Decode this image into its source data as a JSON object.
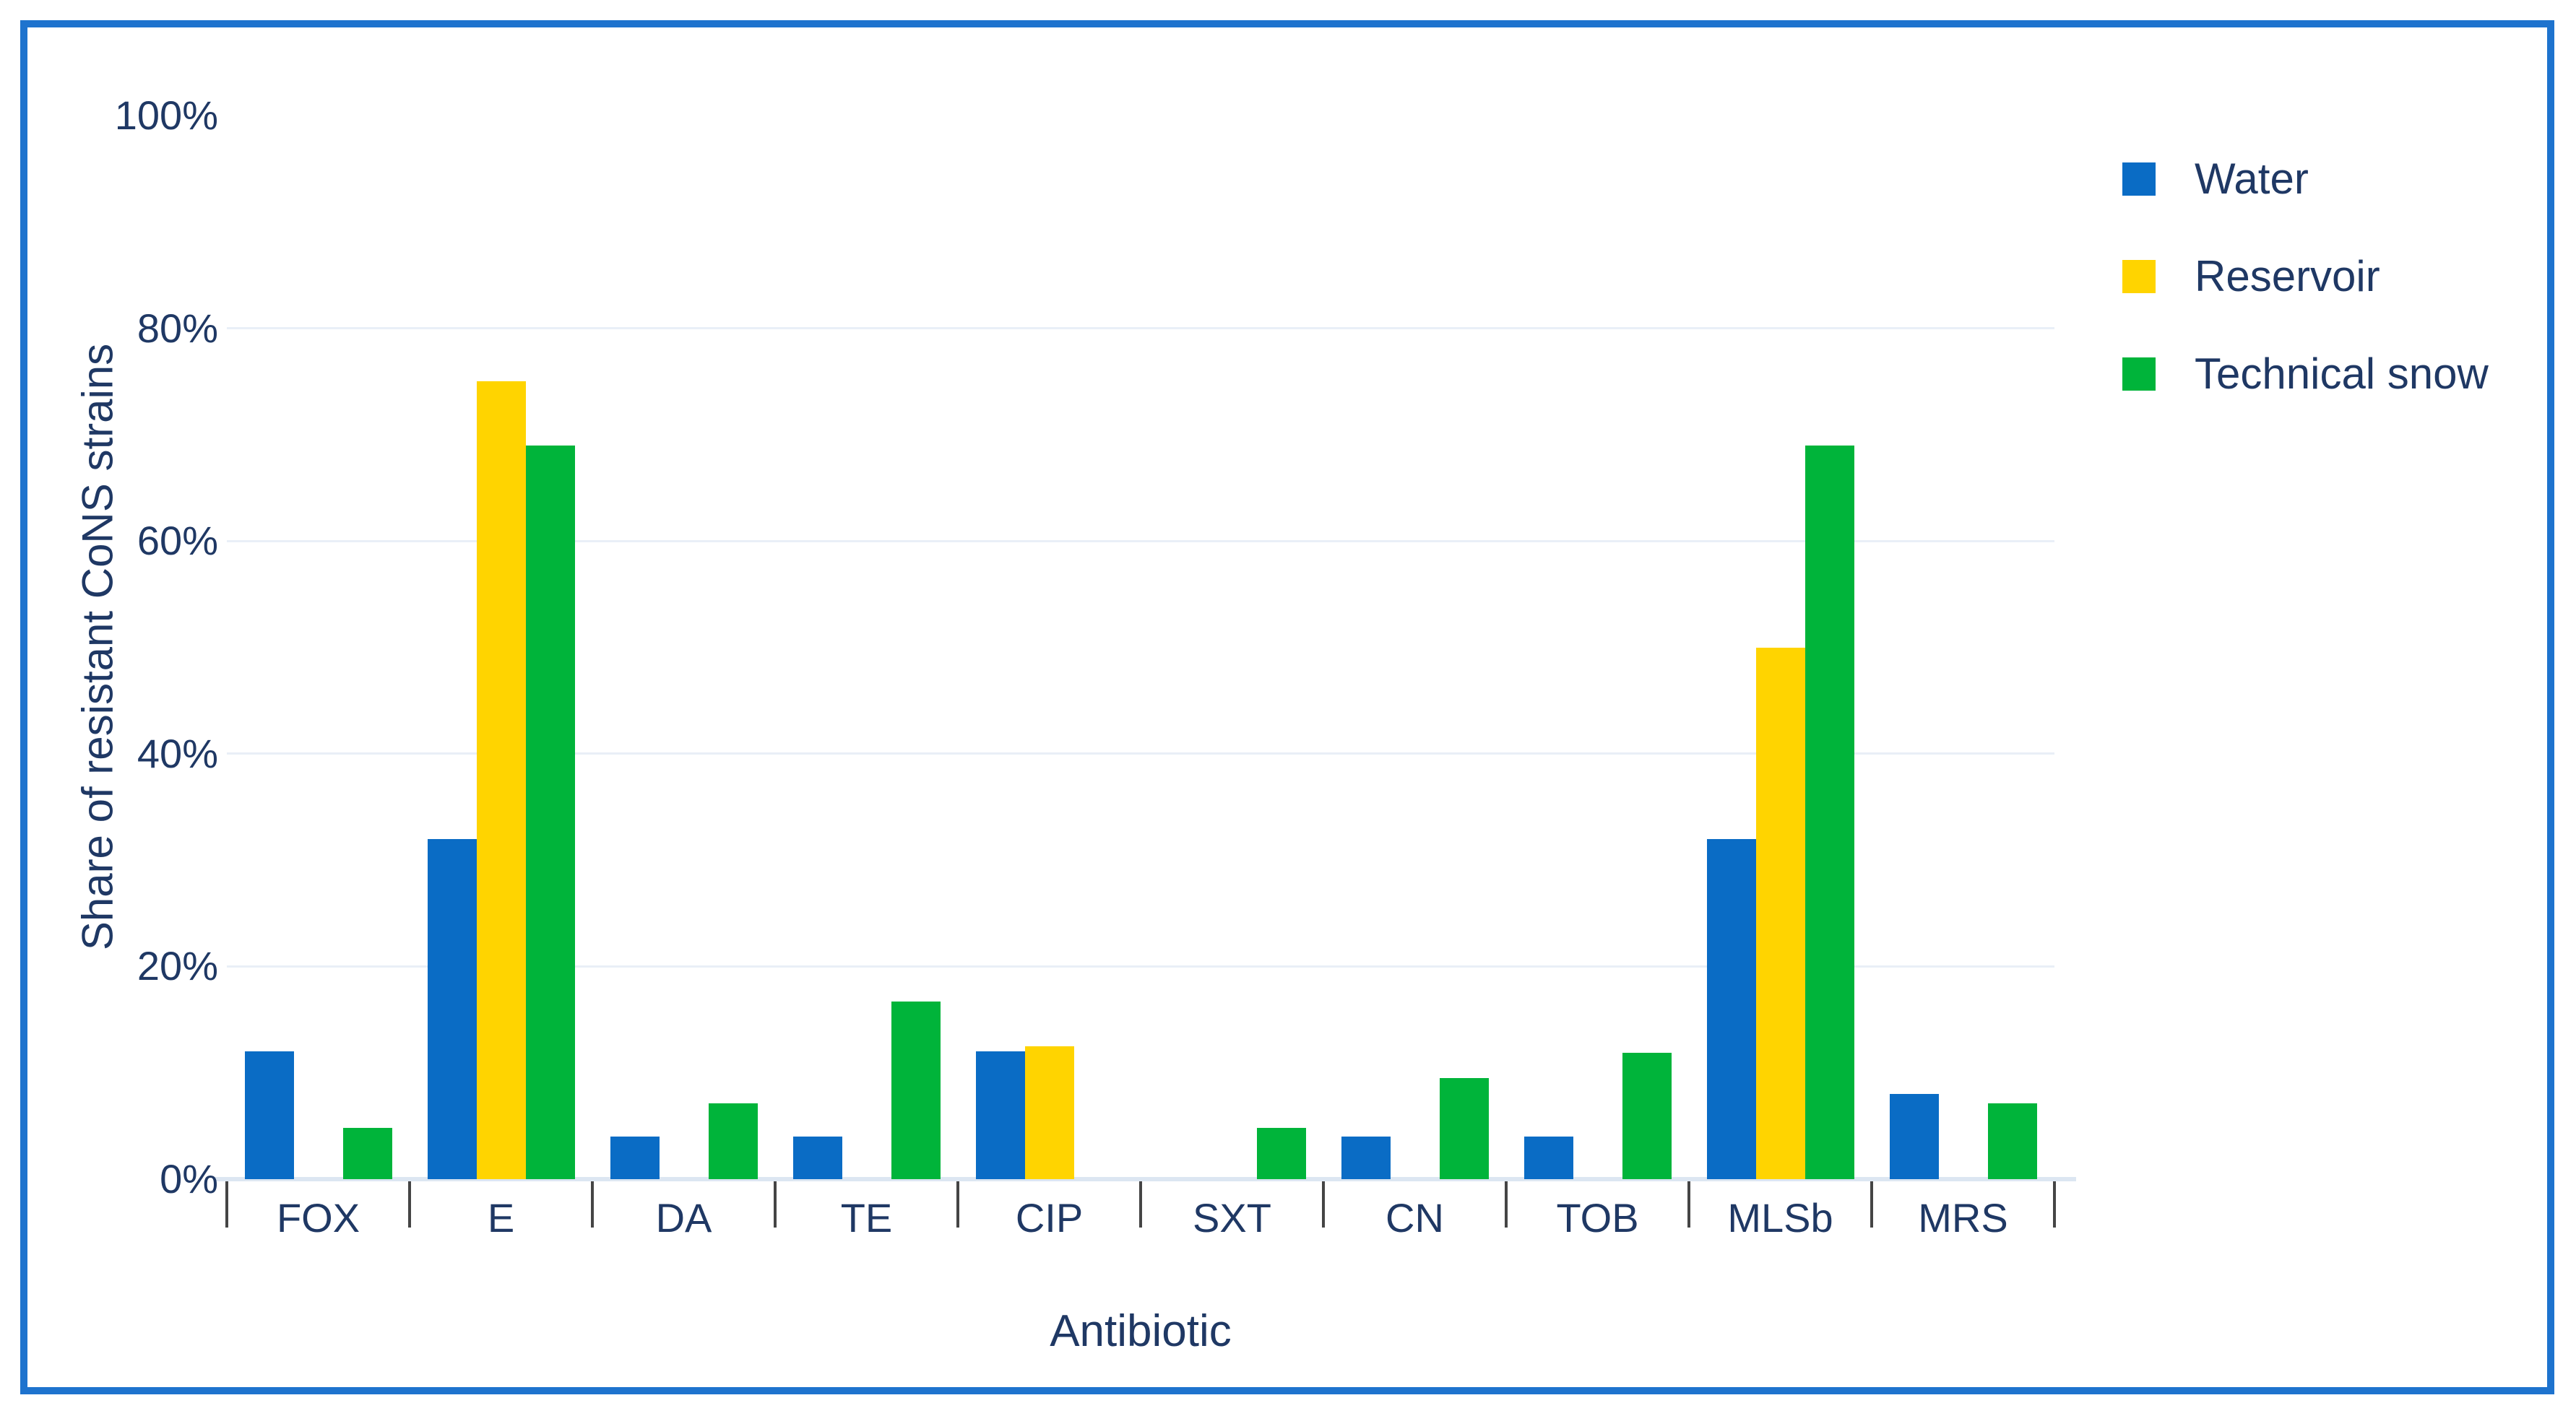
{
  "frame": {
    "border_color": "#1E73CE"
  },
  "chart_data": {
    "type": "bar",
    "title": "",
    "categories": [
      "FOX",
      "E",
      "DA",
      "TE",
      "CIP",
      "SXT",
      "CN",
      "TOB",
      "MLSb",
      "MRS"
    ],
    "series": [
      {
        "name": "Water",
        "color": "#0A6CC5",
        "values": [
          12,
          32,
          4,
          4,
          12,
          0,
          4,
          4,
          32,
          8
        ]
      },
      {
        "name": "Reservoir",
        "color": "#FFD400",
        "values": [
          0,
          75,
          0,
          0,
          12.5,
          0,
          0,
          0,
          50,
          0
        ]
      },
      {
        "name": "Technical snow",
        "color": "#00B43A",
        "values": [
          4.8,
          69,
          7.1,
          16.7,
          0,
          4.8,
          9.5,
          11.9,
          69,
          7.1
        ]
      }
    ],
    "xlabel": "Antibiotic",
    "ylabel": "Share of resistant CoNS strains",
    "ylim": [
      0,
      100
    ],
    "yticks": [
      {
        "value": 0,
        "label": "0%"
      },
      {
        "value": 20,
        "label": "20%"
      },
      {
        "value": 40,
        "label": "40%"
      },
      {
        "value": 60,
        "label": "60%"
      },
      {
        "value": 80,
        "label": "80%"
      },
      {
        "value": 100,
        "label": "100%"
      }
    ],
    "gridlines": [
      20,
      40,
      60,
      80
    ],
    "grid": "horizontal",
    "legend_position": "top-right",
    "text_color": "#1F3864",
    "tick_color": "#454545",
    "gridline_color": "#E9EFF7",
    "axis_line_color": "#DCE6F2"
  }
}
